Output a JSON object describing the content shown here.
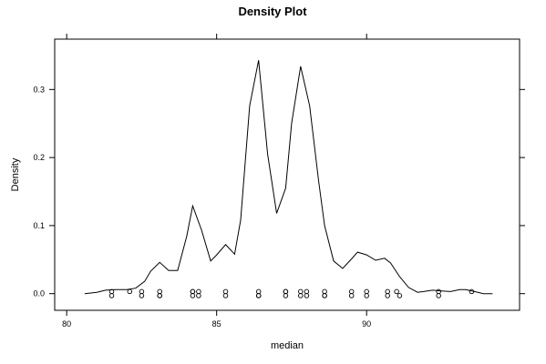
{
  "chart_data": {
    "type": "line",
    "title": "Density Plot",
    "xlabel": "median",
    "ylabel": "Density",
    "xlim": [
      79.6,
      95.1
    ],
    "ylim": [
      -0.0245,
      0.374
    ],
    "xticks": [
      80,
      85,
      90
    ],
    "yticks": [
      0.0,
      0.1,
      0.2,
      0.3
    ],
    "xtick_labels": [
      "80",
      "85",
      "90"
    ],
    "ytick_labels": [
      "0.0",
      "0.1",
      "0.2",
      "0.3"
    ],
    "grid": false,
    "legend": "none",
    "series": [
      {
        "style": "line",
        "x": [
          80.6,
          81.0,
          81.3,
          81.6,
          82.0,
          82.3,
          82.6,
          82.8,
          83.1,
          83.4,
          83.7,
          84.0,
          84.2,
          84.5,
          84.8,
          85.0,
          85.3,
          85.6,
          85.8,
          86.1,
          86.4,
          86.7,
          87.0,
          87.3,
          87.5,
          87.8,
          88.1,
          88.4,
          88.6,
          88.9,
          89.2,
          89.5,
          89.7,
          90.0,
          90.3,
          90.6,
          90.8,
          91.1,
          91.4,
          91.7,
          91.9,
          92.2,
          92.5,
          92.8,
          93.1,
          93.3,
          93.6,
          93.9,
          94.2
        ],
        "y": [
          0.0,
          0.002,
          0.005,
          0.006,
          0.006,
          0.008,
          0.018,
          0.033,
          0.046,
          0.034,
          0.034,
          0.084,
          0.129,
          0.093,
          0.048,
          0.057,
          0.072,
          0.058,
          0.108,
          0.276,
          0.343,
          0.205,
          0.118,
          0.155,
          0.25,
          0.334,
          0.276,
          0.166,
          0.1,
          0.048,
          0.037,
          0.051,
          0.061,
          0.057,
          0.049,
          0.052,
          0.045,
          0.025,
          0.009,
          0.002,
          0.003,
          0.005,
          0.004,
          0.003,
          0.006,
          0.006,
          0.003,
          0.0,
          0.0
        ]
      },
      {
        "style": "points",
        "jitter": [
          0.003,
          -0.003
        ],
        "x": [
          81.5,
          81.5,
          82.1,
          82.5,
          82.5,
          83.1,
          83.1,
          83.1,
          84.2,
          84.2,
          84.2,
          84.4,
          84.4,
          85.3,
          85.3,
          86.4,
          86.4,
          86.4,
          87.3,
          87.3,
          87.3,
          87.8,
          87.8,
          88.0,
          88.0,
          88.6,
          88.6,
          88.6,
          89.5,
          89.5,
          90.0,
          90.0,
          90.7,
          90.7,
          91.0,
          91.1,
          92.4,
          92.4,
          93.5
        ]
      }
    ]
  }
}
